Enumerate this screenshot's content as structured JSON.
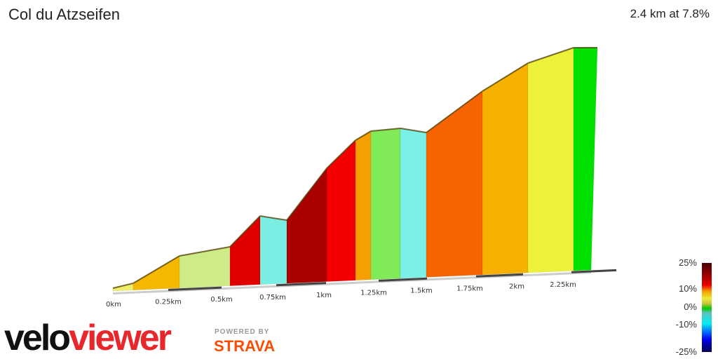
{
  "header": {
    "title": "Col du Atzseifen",
    "summary": "2.4 km at 7.8%"
  },
  "chart_data": {
    "type": "area",
    "title": "Col du Atzseifen",
    "distance_km": 2.4,
    "avg_grade_pct": 7.8,
    "x_ticks": [
      "0km",
      "0.25km",
      "0.5km",
      "0.75km",
      "1km",
      "1.25km",
      "1.5km",
      "1.75km",
      "2km",
      "2.25km"
    ],
    "segments": [
      {
        "color": "#eeee66"
      },
      {
        "color": "#f5b800"
      },
      {
        "color": "#cdec88"
      },
      {
        "color": "#e00000"
      },
      {
        "color": "#7aeee2"
      },
      {
        "color": "#aa0000"
      },
      {
        "color": "#f50000"
      },
      {
        "color": "#f5a000"
      },
      {
        "color": "#80ea58"
      },
      {
        "color": "#7af0e6"
      },
      {
        "color": "#f56400"
      },
      {
        "color": "#f5b000"
      },
      {
        "color": "#ecf23a"
      },
      {
        "color": "#00e000"
      }
    ],
    "legend": {
      "labels": [
        "25%",
        "10%",
        "0%",
        "-10%",
        "-25%"
      ]
    }
  },
  "branding": {
    "logo_a": "velo",
    "logo_b": "viewer",
    "powered": "POWERED BY",
    "strava": "STRAVA"
  }
}
